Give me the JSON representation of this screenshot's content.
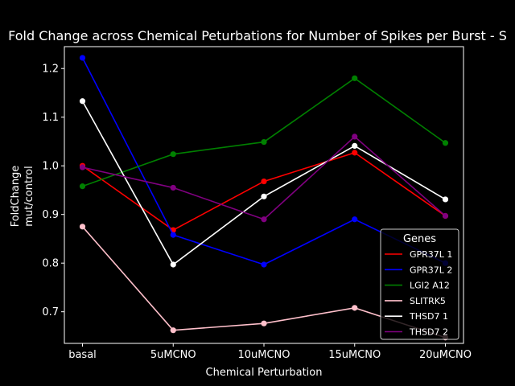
{
  "chart_data": {
    "type": "line",
    "title": "Fold Change across Chemical Peturbations for Number of Spikes per Burst - S",
    "xlabel": "Chemical Perturbation",
    "ylabel_line1": "FoldChange",
    "ylabel_line2": "mut/control",
    "categories": [
      "basal",
      "5uMCNO",
      "10uMCNO",
      "15uMCNO",
      "20uMCNO"
    ],
    "ylim": [
      0.635,
      1.245
    ],
    "yticks": [
      0.7,
      0.8,
      0.9,
      1.0,
      1.1,
      1.2
    ],
    "ytick_labels": [
      "0.7",
      "0.8",
      "0.9",
      "1.0",
      "1.1",
      "1.2"
    ],
    "grid": false,
    "legend": {
      "title": "Genes",
      "position": "lower-right"
    },
    "series": [
      {
        "name": "GPR37L 1",
        "color": "#ff0000",
        "values": [
          1.0,
          0.868,
          0.968,
          1.027,
          0.897
        ]
      },
      {
        "name": "GPR37L 2",
        "color": "#0000ff",
        "values": [
          1.222,
          0.858,
          0.797,
          0.89,
          0.8
        ]
      },
      {
        "name": "LGI2 A12",
        "color": "#008000",
        "values": [
          0.958,
          1.024,
          1.049,
          1.18,
          1.047
        ]
      },
      {
        "name": "SLITRK5",
        "color": "#ffc0cb",
        "values": [
          0.875,
          0.662,
          0.676,
          0.708,
          0.647
        ]
      },
      {
        "name": "THSD7 1",
        "color": "#ffffff",
        "values": [
          1.133,
          0.797,
          0.937,
          1.041,
          0.931
        ]
      },
      {
        "name": "THSD7 2",
        "color": "#800080",
        "values": [
          0.997,
          0.955,
          0.89,
          1.06,
          0.897
        ]
      }
    ]
  }
}
